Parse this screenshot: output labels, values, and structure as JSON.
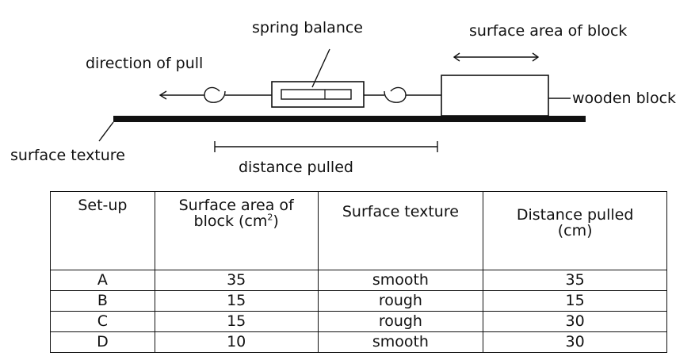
{
  "diagram": {
    "labels": {
      "spring_balance": "spring balance",
      "surface_area": "surface area of block",
      "direction": "direction of pull",
      "wooden_block": "wooden block",
      "surface_texture": "surface texture",
      "distance_pulled": "distance pulled"
    }
  },
  "table": {
    "headers": {
      "setup": "Set-up",
      "area_line1": "Surface area of",
      "area_line2": "block (cm",
      "area_sup": "2",
      "area_close": ")",
      "texture": "Surface texture",
      "distance_line1": "Distance pulled",
      "distance_line2": "(cm)"
    },
    "rows": [
      {
        "setup": "A",
        "area": "35",
        "texture": "smooth",
        "distance": "35"
      },
      {
        "setup": "B",
        "area": "15",
        "texture": "rough",
        "distance": "15"
      },
      {
        "setup": "C",
        "area": "15",
        "texture": "rough",
        "distance": "30"
      },
      {
        "setup": "D",
        "area": "10",
        "texture": "smooth",
        "distance": "30"
      }
    ]
  }
}
